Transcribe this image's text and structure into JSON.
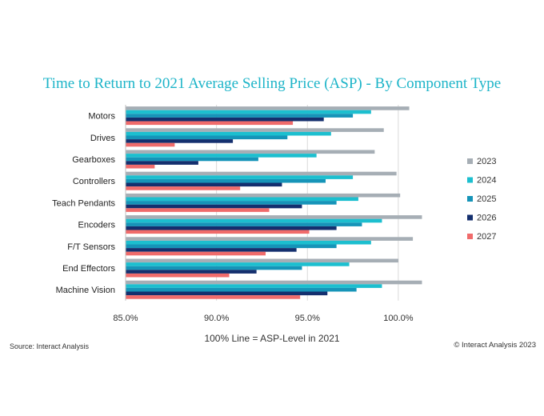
{
  "chart_data": {
    "type": "bar",
    "orientation": "horizontal",
    "title": "Time to Return to 2021 Average Selling Price (ASP) - By Component Type",
    "xlabel": "100% Line = ASP-Level in 2021",
    "source": "Source: Interact Analysis",
    "copyright": "© Interact Analysis 2023",
    "xlim": [
      85.0,
      101.5
    ],
    "xticks": [
      85.0,
      90.0,
      95.0,
      100.0
    ],
    "xtick_labels": [
      "85.0%",
      "90.0%",
      "95.0%",
      "100.0%"
    ],
    "categories": [
      "Motors",
      "Drives",
      "Gearboxes",
      "Controllers",
      "Teach Pendants",
      "Encoders",
      "F/T Sensors",
      "End Effectors",
      "Machine Vision"
    ],
    "legend_position": "right",
    "series": [
      {
        "name": "2023",
        "color": "#a6aeb5",
        "values": [
          100.6,
          99.2,
          98.7,
          99.9,
          100.1,
          101.3,
          100.8,
          100.0,
          101.3
        ]
      },
      {
        "name": "2024",
        "color": "#1cbfcf",
        "values": [
          98.5,
          96.3,
          95.5,
          97.5,
          97.8,
          99.1,
          98.5,
          97.3,
          99.1
        ]
      },
      {
        "name": "2025",
        "color": "#1694b8",
        "values": [
          97.5,
          93.9,
          92.3,
          96.0,
          96.6,
          98.0,
          96.6,
          94.7,
          97.7
        ]
      },
      {
        "name": "2026",
        "color": "#142f6e",
        "values": [
          95.9,
          90.9,
          89.0,
          93.6,
          94.7,
          96.6,
          94.4,
          92.2,
          96.1
        ]
      },
      {
        "name": "2027",
        "color": "#f06b6b",
        "values": [
          94.2,
          87.7,
          86.6,
          91.3,
          92.9,
          95.1,
          92.7,
          90.7,
          94.6
        ]
      }
    ]
  }
}
